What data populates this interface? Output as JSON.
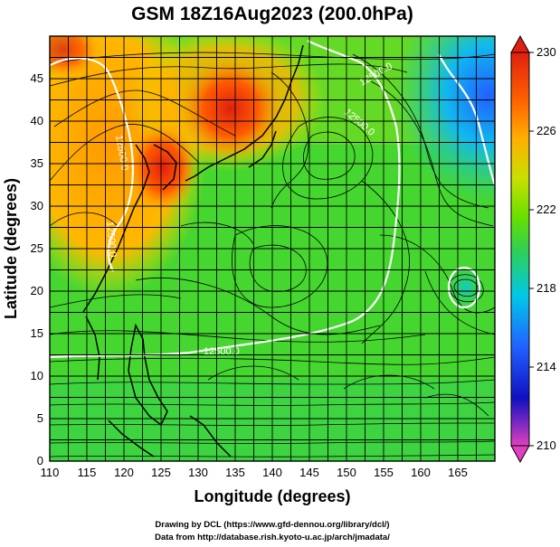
{
  "title": "GSM 18Z16Aug2023 (200.0hPa)",
  "credits": {
    "drawing": "Drawing by DCL (https://www.gfd-dennou.org/library/dcl/)",
    "data": "Data from http://database.rish.kyoto-u.ac.jp/arch/jmadata/"
  },
  "chart_data": {
    "type": "heatmap",
    "xlabel": "Longitude (degrees)",
    "ylabel": "Latitude  (degrees)",
    "xlim": [
      110,
      170
    ],
    "ylim": [
      0,
      50
    ],
    "x_ticks": [
      "110",
      "115",
      "120",
      "125",
      "130",
      "135",
      "140",
      "145",
      "150",
      "155",
      "160",
      "165"
    ],
    "y_ticks": [
      "0",
      "5",
      "10",
      "15",
      "20",
      "25",
      "30",
      "35",
      "40",
      "45"
    ],
    "grid": true,
    "colorbar": {
      "range": [
        210,
        230
      ],
      "ticks": [
        "230",
        "226",
        "222",
        "218",
        "214",
        "210"
      ],
      "colors": [
        "#e040c0",
        "#1010c0",
        "#2060ff",
        "#00c8e8",
        "#30d050",
        "#66e000",
        "#c8e000",
        "#ffb000",
        "#ff6000",
        "#e02010"
      ]
    },
    "contour_labels": [
      "12500.0",
      "12500.0",
      "12500.0",
      "12500.0",
      "12500.0"
    ]
  }
}
